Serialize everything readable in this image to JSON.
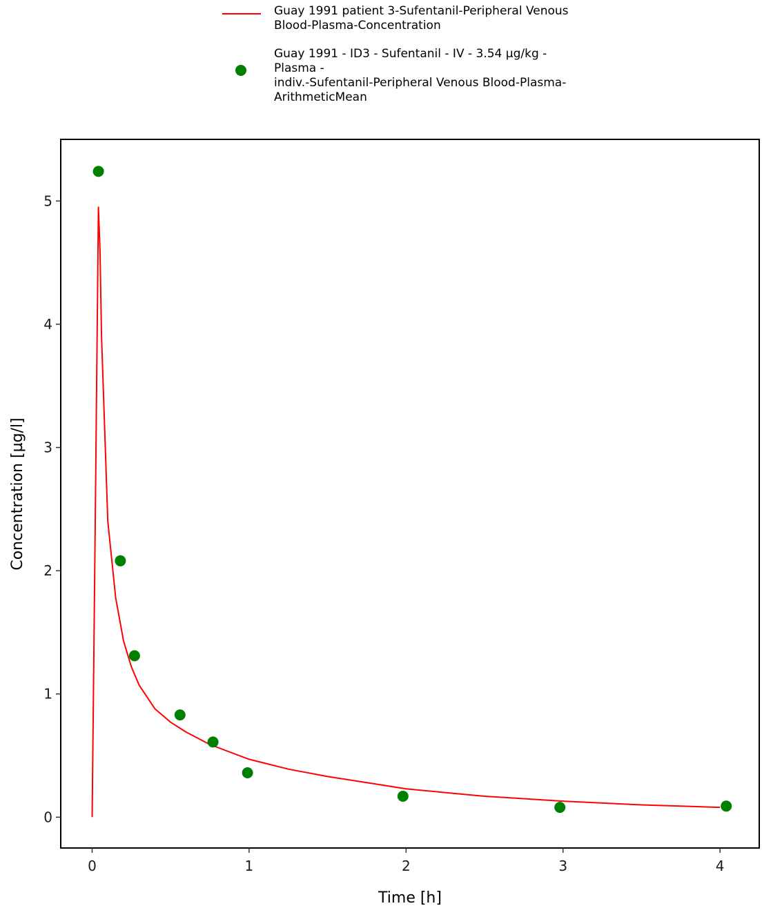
{
  "legend": {
    "entries": [
      {
        "kind": "line",
        "color": "#ff0000",
        "label": "Guay 1991 patient 3-Sufentanil-Peripheral Venous\nBlood-Plasma-Concentration"
      },
      {
        "kind": "point",
        "color": "#008000",
        "label": "Guay 1991 - ID3 - Sufentanil - IV - 3.54 µg/kg -\nPlasma -\nindiv.-Sufentanil-Peripheral Venous Blood-Plasma-\nArithmeticMean"
      }
    ]
  },
  "chart_data": {
    "type": "line",
    "title": "",
    "xlabel": "Time [h]",
    "ylabel": "Concentration [µg/l]",
    "xlim": [
      -0.2,
      4.25
    ],
    "ylim": [
      -0.25,
      5.5
    ],
    "xticks": [
      0,
      1,
      2,
      3,
      4
    ],
    "yticks": [
      0,
      1,
      2,
      3,
      4,
      5
    ],
    "grid": false,
    "legend_position": "top",
    "series": [
      {
        "name": "Guay 1991 patient 3-Sufentanil-Peripheral Venous Blood-Plasma-Concentration",
        "type": "line",
        "color": "#ff0000",
        "x": [
          0,
          0.02,
          0.04,
          0.05,
          0.06,
          0.1,
          0.15,
          0.2,
          0.25,
          0.3,
          0.4,
          0.5,
          0.6,
          0.75,
          1.0,
          1.25,
          1.5,
          1.75,
          2.0,
          2.5,
          3.0,
          3.5,
          4.0
        ],
        "y": [
          0,
          2.4,
          4.95,
          4.6,
          3.9,
          2.4,
          1.78,
          1.43,
          1.22,
          1.07,
          0.88,
          0.77,
          0.69,
          0.59,
          0.47,
          0.39,
          0.33,
          0.28,
          0.23,
          0.17,
          0.13,
          0.1,
          0.08
        ]
      },
      {
        "name": "Guay 1991 - ID3 - Sufentanil - IV - 3.54 µg/kg - Plasma - indiv.-Sufentanil-Peripheral Venous Blood-Plasma-ArithmeticMean",
        "type": "scatter",
        "color": "#008000",
        "x": [
          0.04,
          0.18,
          0.27,
          0.56,
          0.77,
          0.99,
          1.98,
          2.98,
          4.04
        ],
        "y": [
          5.24,
          2.08,
          1.31,
          0.83,
          0.61,
          0.36,
          0.17,
          0.08,
          0.09
        ]
      }
    ]
  }
}
